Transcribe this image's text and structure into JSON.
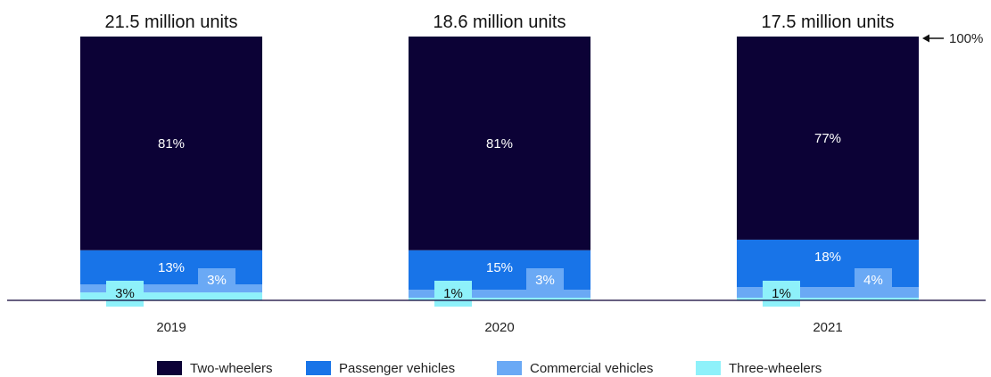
{
  "chart_data": {
    "type": "bar",
    "stacked": true,
    "percent_stacked": true,
    "categories": [
      "2019",
      "2020",
      "2021"
    ],
    "totals": [
      "21.5 million units",
      "18.6 million units",
      "17.5 million units"
    ],
    "series": [
      {
        "name": "Three-wheelers",
        "values": [
          3,
          1,
          1
        ],
        "labels": [
          "3%",
          "1%",
          "1%"
        ],
        "color": "#8ef1fa"
      },
      {
        "name": "Commercial vehicles",
        "values": [
          3,
          3,
          4
        ],
        "labels": [
          "3%",
          "3%",
          "4%"
        ],
        "color": "#6aa9f5"
      },
      {
        "name": "Passenger vehicles",
        "values": [
          13,
          15,
          18
        ],
        "labels": [
          "13%",
          "15%",
          "18%"
        ],
        "color": "#1874e8"
      },
      {
        "name": "Two-wheelers",
        "values": [
          81,
          81,
          77
        ],
        "labels": [
          "81%",
          "81%",
          "77%"
        ],
        "color": "#0c0236"
      }
    ],
    "reference_label": "100%",
    "legend": {
      "position": "bottom",
      "order": [
        "Two-wheelers",
        "Passenger vehicles",
        "Commercial vehicles",
        "Three-wheelers"
      ]
    },
    "grid": false
  }
}
